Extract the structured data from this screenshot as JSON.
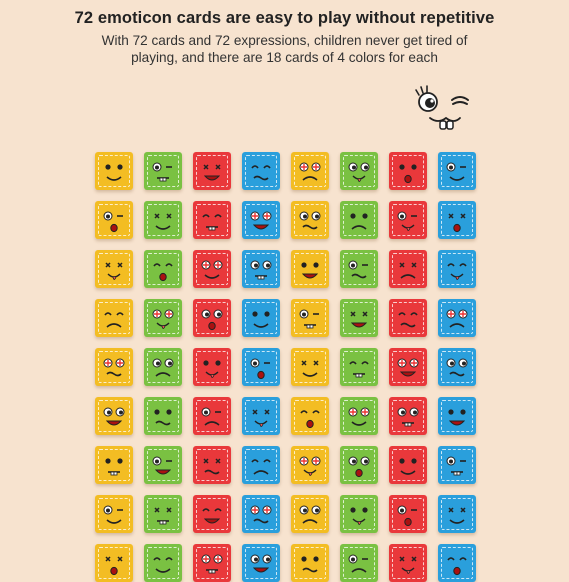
{
  "heading": {
    "title": "72 emoticon cards are easy to play without repetitive",
    "line1": "With 72 cards and 72 expressions, children never get tired of",
    "line2": "playing, and there are 18 cards of 4 colors for each"
  },
  "palette": {
    "yellow": "#f3bd23",
    "green": "#7ac142",
    "red": "#e9383b",
    "blue": "#2a9fdc",
    "background": "#f7e3cf"
  },
  "grid": {
    "rows": 9,
    "columns": 8,
    "column_colors": [
      "yellow",
      "green",
      "red",
      "blue",
      "yellow",
      "green",
      "red",
      "blue"
    ]
  },
  "mascot": {
    "icon": "winking-face-icon"
  }
}
